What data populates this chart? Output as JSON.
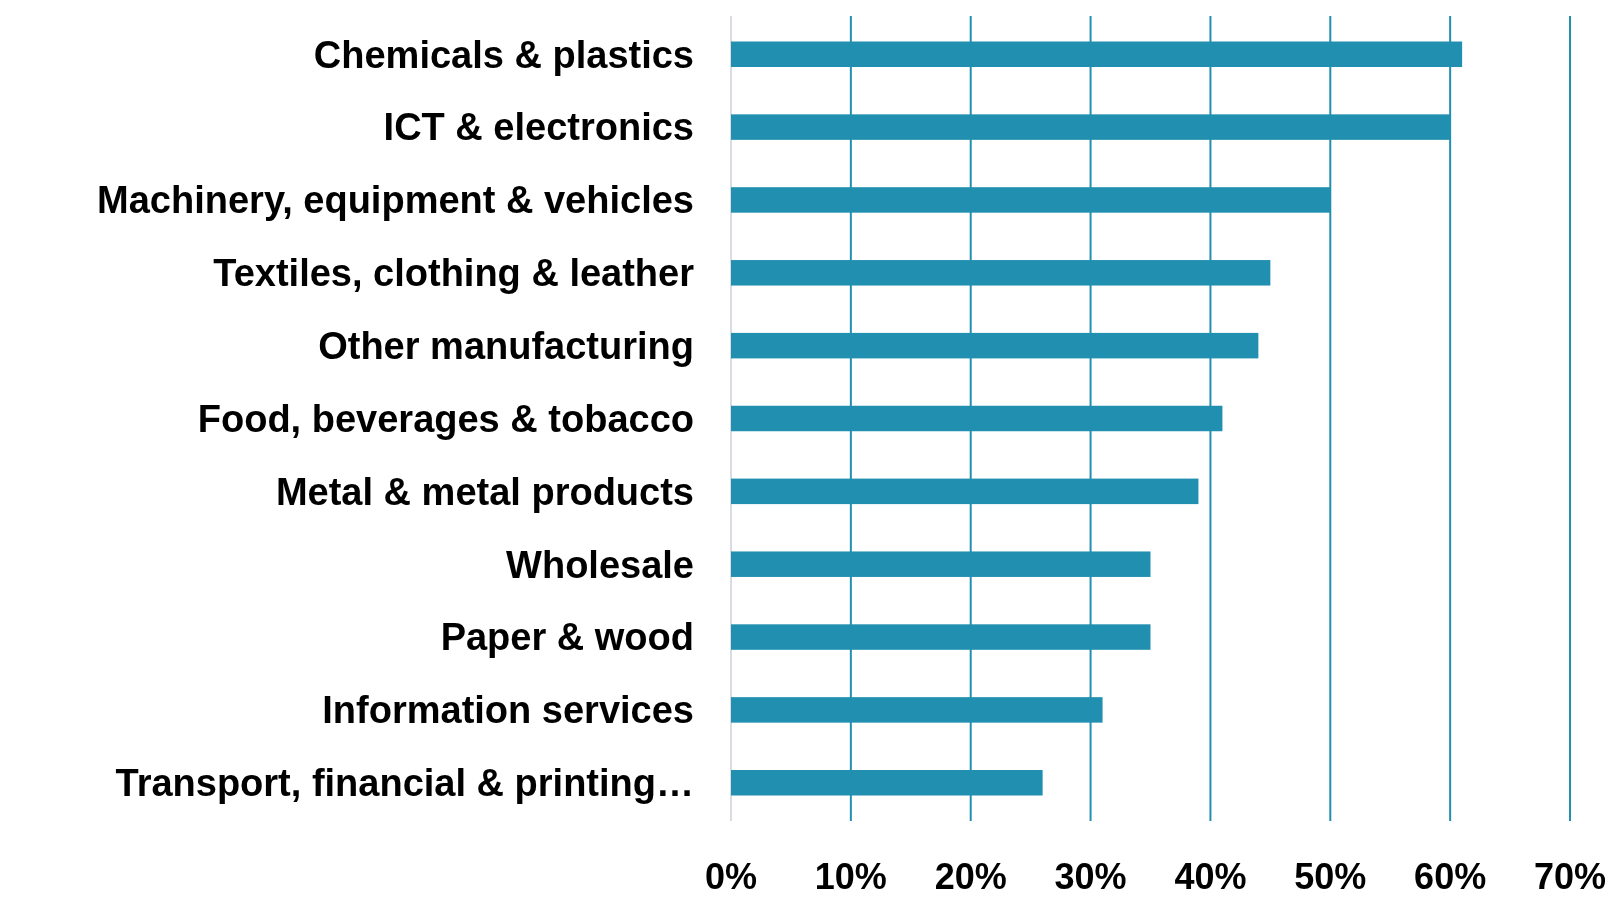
{
  "chart_data": {
    "type": "bar",
    "orientation": "horizontal",
    "categories": [
      "Chemicals & plastics",
      "ICT & electronics",
      "Machinery, equipment & vehicles",
      "Textiles, clothing & leather",
      "Other manufacturing",
      "Food, beverages & tobacco",
      "Metal & metal products",
      "Wholesale",
      "Paper & wood",
      "Information services",
      "Transport, financial & printing…"
    ],
    "values": [
      61,
      60,
      50,
      45,
      44,
      41,
      39,
      35,
      35,
      31,
      26
    ],
    "color": "#2190b0",
    "xlim": [
      0,
      70
    ],
    "xticks": [
      {
        "value": 0,
        "label": "0%"
      },
      {
        "value": 10,
        "label": "10%"
      },
      {
        "value": 20,
        "label": "20%"
      },
      {
        "value": 30,
        "label": "30%"
      },
      {
        "value": 40,
        "label": "40%"
      },
      {
        "value": 50,
        "label": "50%"
      },
      {
        "value": 60,
        "label": "60%"
      },
      {
        "value": 70,
        "label": "70%"
      }
    ],
    "grid": "x"
  }
}
